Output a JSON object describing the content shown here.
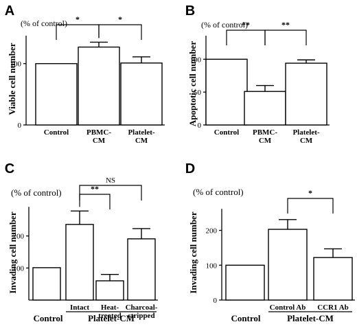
{
  "chart_data": [
    {
      "panel": "A",
      "type": "bar",
      "unit_label": "(% of control)",
      "ylabel": "Viable cell number",
      "categories": [
        "Control",
        "PBMC-\nCM",
        "Platelet-\nCM"
      ],
      "values": [
        100,
        127,
        101
      ],
      "errors": [
        0,
        8,
        10
      ],
      "ylim": [
        0,
        150
      ],
      "yticks": [
        0,
        100
      ],
      "significance": [
        {
          "from": 0,
          "to": 1,
          "label": "*"
        },
        {
          "from": 1,
          "to": 2,
          "label": "*"
        }
      ]
    },
    {
      "panel": "B",
      "type": "bar",
      "unit_label": "(% of control)",
      "ylabel": "Apoptotic cell number",
      "categories": [
        "Control",
        "PBMC-\nCM",
        "Platelet-\nCM"
      ],
      "values": [
        100,
        51,
        94
      ],
      "errors": [
        0,
        9,
        5
      ],
      "ylim": [
        0,
        140
      ],
      "yticks": [
        0,
        50,
        100
      ],
      "significance": [
        {
          "from": 0,
          "to": 1,
          "label": "**"
        },
        {
          "from": 1,
          "to": 2,
          "label": "**"
        }
      ]
    },
    {
      "panel": "C",
      "type": "bar",
      "unit_label": "(% of control)",
      "ylabel": "Invading cell number",
      "categories": [
        "Control",
        "Intact",
        "Heat-\ntreated",
        "Charcoal-\nstripped"
      ],
      "group_label": "Platelet-CM",
      "values": [
        101,
        236,
        60,
        191
      ],
      "errors": [
        0,
        42,
        20,
        32
      ],
      "ylim": [
        0,
        300
      ],
      "yticks": [
        100,
        200
      ],
      "significance": [
        {
          "from": 1,
          "to": 2,
          "label": "**"
        },
        {
          "from": 1,
          "to": 3,
          "label": "NS"
        }
      ]
    },
    {
      "panel": "D",
      "type": "bar",
      "unit_label": "(% of control)",
      "ylabel": "Invading cell number",
      "categories": [
        "Control",
        "Control  Ab",
        "CCR1  Ab"
      ],
      "group_label": "Platelet-CM",
      "values": [
        100,
        203,
        122
      ],
      "errors": [
        0,
        28,
        25
      ],
      "ylim": [
        0,
        270
      ],
      "yticks": [
        0,
        100,
        200
      ],
      "significance": [
        {
          "from": 1,
          "to": 2,
          "label": "*"
        }
      ]
    }
  ]
}
